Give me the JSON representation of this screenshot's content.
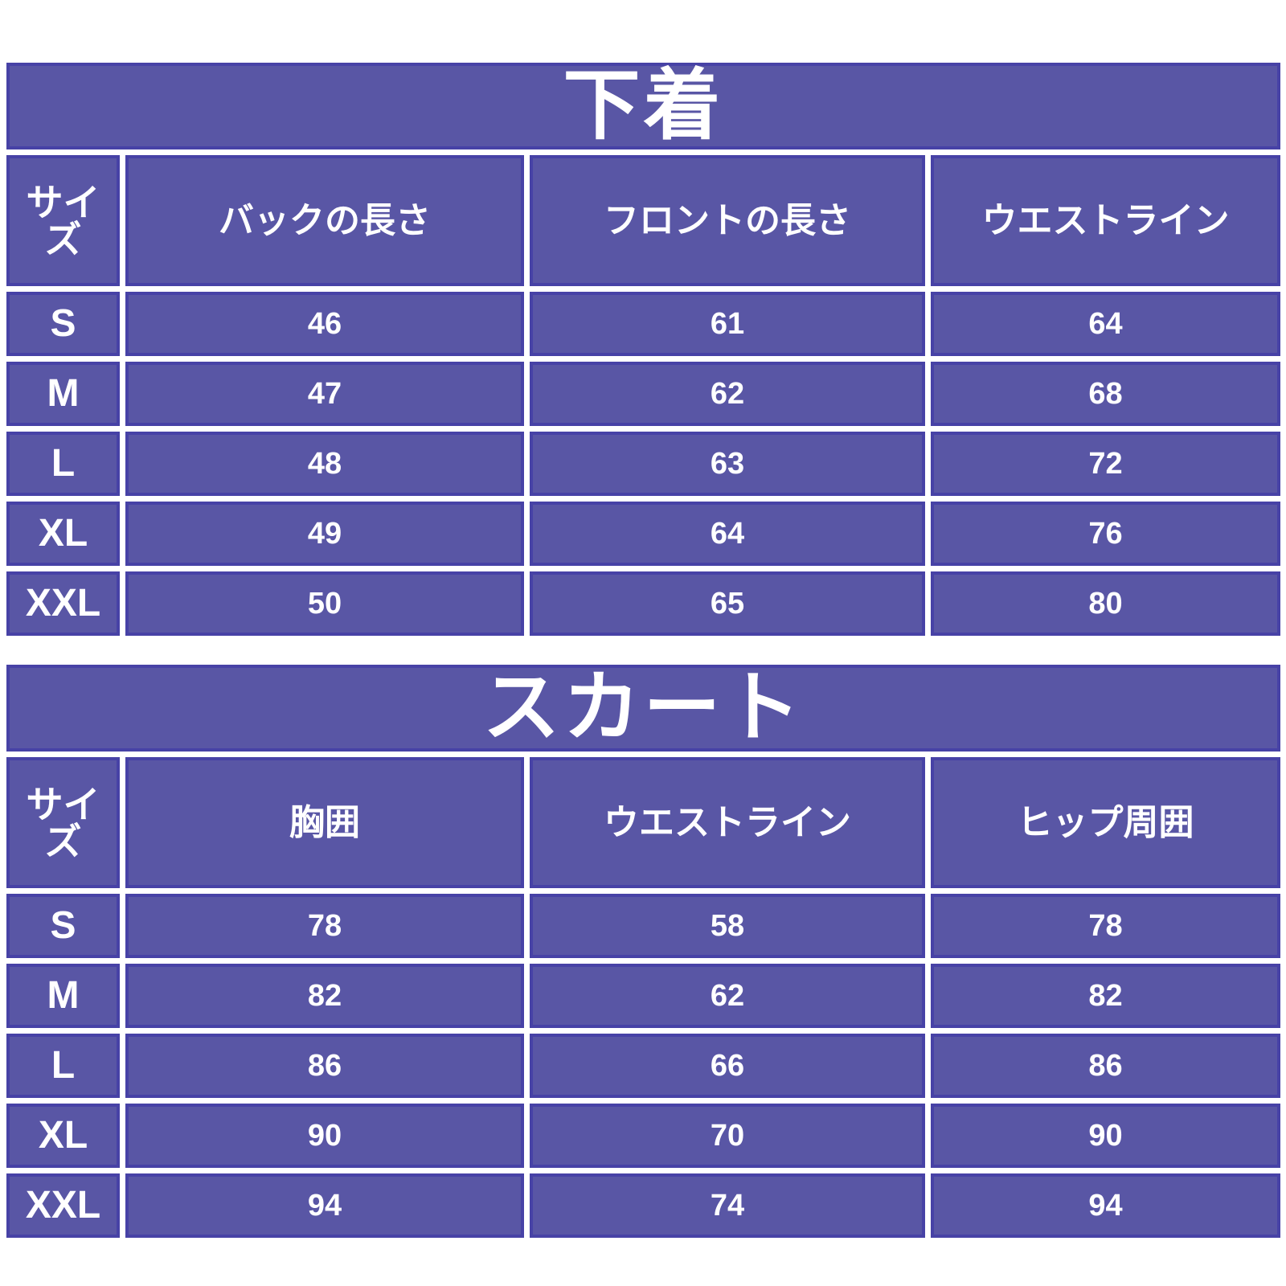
{
  "colors": {
    "background": "#ffffff",
    "cell_fill": "#5956a5",
    "cell_border": "#4742a6",
    "text": "#ffffff",
    "grid_gap": "#ffffff"
  },
  "tables": [
    {
      "title": "下着",
      "columns": [
        "サイズ",
        "バックの長さ",
        "フロントの長さ",
        "ウエストライン"
      ],
      "rows": [
        {
          "size": "S",
          "values": [
            "46",
            "61",
            "64"
          ]
        },
        {
          "size": "M",
          "values": [
            "47",
            "62",
            "68"
          ]
        },
        {
          "size": "L",
          "values": [
            "48",
            "63",
            "72"
          ]
        },
        {
          "size": "XL",
          "values": [
            "49",
            "64",
            "76"
          ]
        },
        {
          "size": "XXL",
          "values": [
            "50",
            "65",
            "80"
          ]
        }
      ]
    },
    {
      "title": "スカート",
      "columns": [
        "サイズ",
        "胸囲",
        "ウエストライン",
        "ヒップ周囲"
      ],
      "rows": [
        {
          "size": "S",
          "values": [
            "78",
            "58",
            "78"
          ]
        },
        {
          "size": "M",
          "values": [
            "82",
            "62",
            "82"
          ]
        },
        {
          "size": "L",
          "values": [
            "86",
            "66",
            "86"
          ]
        },
        {
          "size": "XL",
          "values": [
            "90",
            "70",
            "90"
          ]
        },
        {
          "size": "XXL",
          "values": [
            "94",
            "74",
            "94"
          ]
        }
      ]
    }
  ]
}
